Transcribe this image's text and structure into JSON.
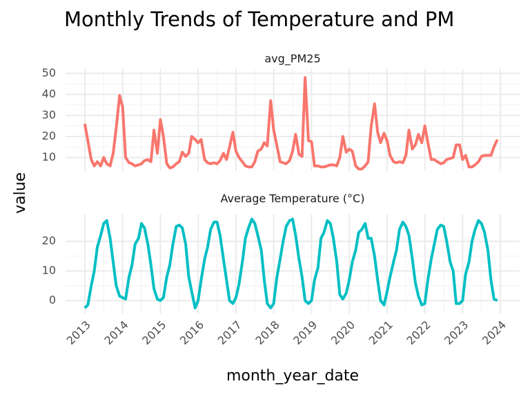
{
  "chart_data": {
    "type": "line",
    "title": "Monthly Trends of Temperature and PM",
    "xlabel": "month_year_date",
    "ylabel": "value",
    "x": [
      2013,
      2013.08,
      2013.17,
      2013.25,
      2013.33,
      2013.42,
      2013.5,
      2013.58,
      2013.67,
      2013.75,
      2013.83,
      2013.92,
      2014,
      2014.08,
      2014.17,
      2014.25,
      2014.33,
      2014.42,
      2014.5,
      2014.58,
      2014.67,
      2014.75,
      2014.83,
      2014.92,
      2015,
      2015.08,
      2015.17,
      2015.25,
      2015.33,
      2015.42,
      2015.5,
      2015.58,
      2015.67,
      2015.75,
      2015.83,
      2015.92,
      2016,
      2016.08,
      2016.17,
      2016.25,
      2016.33,
      2016.42,
      2016.5,
      2016.58,
      2016.67,
      2016.75,
      2016.83,
      2016.92,
      2017,
      2017.08,
      2017.17,
      2017.25,
      2017.33,
      2017.42,
      2017.5,
      2017.58,
      2017.67,
      2017.75,
      2017.83,
      2017.92,
      2018,
      2018.08,
      2018.17,
      2018.25,
      2018.33,
      2018.42,
      2018.5,
      2018.58,
      2018.67,
      2018.75,
      2018.83,
      2018.92,
      2019,
      2019.08,
      2019.17,
      2019.25,
      2019.33,
      2019.42,
      2019.5,
      2019.58,
      2019.67,
      2019.75,
      2019.83,
      2019.92,
      2020,
      2020.08,
      2020.17,
      2020.25,
      2020.33,
      2020.42,
      2020.5,
      2020.58,
      2020.67,
      2020.75,
      2020.83,
      2020.92,
      2021,
      2021.08,
      2021.17,
      2021.25,
      2021.33,
      2021.42,
      2021.5,
      2021.58,
      2021.67,
      2021.75,
      2021.83,
      2021.92,
      2022,
      2022.08,
      2022.17,
      2022.25,
      2022.33,
      2022.42,
      2022.5,
      2022.58,
      2022.67,
      2022.75,
      2022.83,
      2022.92,
      2023,
      2023.08,
      2023.17,
      2023.25,
      2023.33,
      2023.42,
      2023.5,
      2023.58,
      2023.67,
      2023.75,
      2023.83,
      2023.92
    ],
    "xlim": [
      2012.49,
      2024.51
    ],
    "xticks": [
      2013,
      2014,
      2015,
      2016,
      2017,
      2018,
      2019,
      2020,
      2021,
      2022,
      2023,
      2024
    ],
    "grid": true,
    "facets": [
      {
        "title": "avg_PM25",
        "color": "#f8766d",
        "ylim": [
          3.6,
          52.1
        ],
        "yticks": [
          10,
          20,
          30,
          40,
          50
        ],
        "values": [
          26,
          18,
          9,
          6,
          8,
          6,
          10,
          7,
          6,
          12,
          24,
          39.5,
          34,
          10,
          7.5,
          7,
          6,
          6.5,
          7,
          8.5,
          9,
          8,
          23,
          12,
          28,
          20,
          7,
          5,
          5.5,
          7,
          8,
          12.5,
          10.5,
          12,
          20,
          18.5,
          17,
          18.5,
          9,
          7.5,
          7,
          7.5,
          7,
          8.5,
          12,
          9,
          15,
          22,
          13,
          10,
          8,
          6,
          5.5,
          5.5,
          8,
          13,
          14,
          17,
          15.5,
          37,
          23,
          16,
          8,
          7.5,
          7,
          8.5,
          13,
          21,
          11.5,
          10.5,
          48,
          18,
          17.5,
          6,
          6,
          5.5,
          5.5,
          6,
          6.5,
          6.5,
          6,
          10,
          20,
          12.5,
          14,
          13,
          6,
          4.5,
          4.5,
          6,
          8,
          25,
          35.5,
          22,
          17,
          21.5,
          18,
          11,
          8,
          7.5,
          8,
          7.5,
          11,
          23,
          14,
          16,
          21,
          17,
          25,
          17,
          9,
          9,
          8,
          7,
          7.5,
          9,
          9.5,
          10,
          16,
          16,
          9,
          11,
          5.5,
          5.5,
          6.5,
          8,
          10.5,
          11,
          11,
          11,
          15,
          18.5
        ]
      },
      {
        "title": "Average Temperature (°C)",
        "color": "#00bfc4",
        "ylim": [
          -4.4,
          29.1
        ],
        "yticks": [
          0,
          10,
          20
        ],
        "values": [
          -2.5,
          -1.5,
          5,
          10,
          18,
          22,
          26,
          27,
          21,
          13,
          5,
          1.5,
          1,
          0.5,
          8,
          12,
          19,
          21,
          26,
          24.5,
          19,
          12,
          4,
          0.5,
          0,
          1,
          8,
          12,
          19,
          25,
          25.5,
          24.5,
          19,
          8,
          3,
          -2.5,
          0,
          7,
          14,
          18,
          24,
          26.5,
          26.5,
          22,
          14,
          7,
          0,
          -1,
          1,
          5.5,
          13,
          21,
          24.5,
          27.5,
          26,
          22,
          17,
          7,
          -1,
          -2.5,
          -1,
          7.5,
          14,
          20,
          25,
          27,
          27.5,
          22,
          14,
          8,
          0,
          -1,
          0,
          7,
          11,
          21,
          23,
          27,
          26,
          21,
          13,
          2,
          0.5,
          2.5,
          7,
          13,
          17,
          23,
          24,
          26,
          21,
          21,
          15,
          7,
          0,
          -1.5,
          3,
          8,
          13,
          17,
          24,
          26.5,
          25,
          22,
          14,
          6,
          1.5,
          -1.5,
          -1,
          7,
          14,
          19,
          24,
          25.5,
          25,
          20,
          13,
          10,
          -1,
          -1,
          0,
          9,
          13,
          20,
          24,
          27,
          26,
          23,
          17,
          7,
          0.5,
          0
        ]
      }
    ]
  }
}
